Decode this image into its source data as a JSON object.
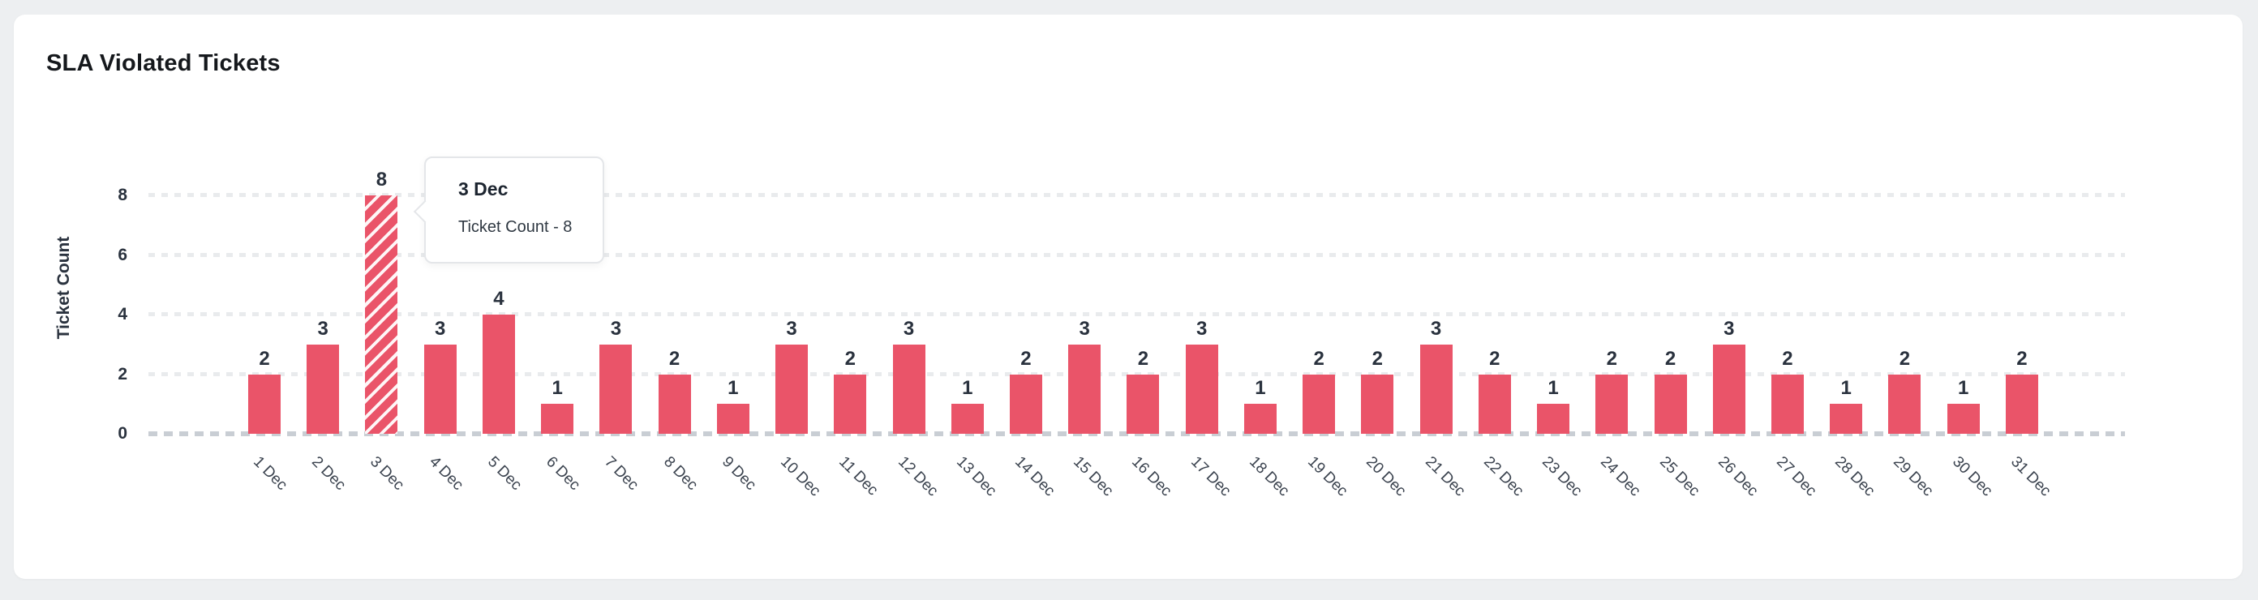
{
  "card": {
    "title": "SLA Violated Tickets"
  },
  "chart_data": {
    "type": "bar",
    "title": "SLA Violated Tickets",
    "xlabel": "",
    "ylabel": "Ticket Count",
    "categories": [
      "1 Dec",
      "2 Dec",
      "3 Dec",
      "4 Dec",
      "5 Dec",
      "6 Dec",
      "7 Dec",
      "8 Dec",
      "9 Dec",
      "10 Dec",
      "11 Dec",
      "12 Dec",
      "13 Dec",
      "14 Dec",
      "15 Dec",
      "16 Dec",
      "17 Dec",
      "18 Dec",
      "19 Dec",
      "20 Dec",
      "21 Dec",
      "22 Dec",
      "23 Dec",
      "24 Dec",
      "25 Dec",
      "26 Dec",
      "27 Dec",
      "28 Dec",
      "29 Dec",
      "30 Dec",
      "31 Dec"
    ],
    "values": [
      2,
      3,
      8,
      3,
      4,
      1,
      3,
      2,
      1,
      3,
      2,
      3,
      1,
      2,
      3,
      2,
      3,
      1,
      2,
      2,
      3,
      2,
      1,
      2,
      2,
      3,
      2,
      1,
      2,
      1,
      2
    ],
    "ylim": [
      0,
      8
    ],
    "yticks": [
      0,
      2,
      4,
      6,
      8
    ],
    "grid": "horizontal-dashed",
    "legend": "none",
    "bar_color": "#EA5469",
    "highlight": {
      "index": 2,
      "category": "3 Dec",
      "style": "diagonal-white-hatch"
    }
  },
  "tooltip": {
    "title": "3 Dec",
    "text": "Ticket Count - 8"
  },
  "colors": {
    "page_background": "#edeff1",
    "card_background": "#ffffff",
    "bar": "#EA5469",
    "axis_text": "#2a323e",
    "x_label_text": "#3a424e",
    "gridline": "#e9ebed",
    "zero_line": "#c9ced4",
    "tooltip_border": "#e4e6e9"
  }
}
